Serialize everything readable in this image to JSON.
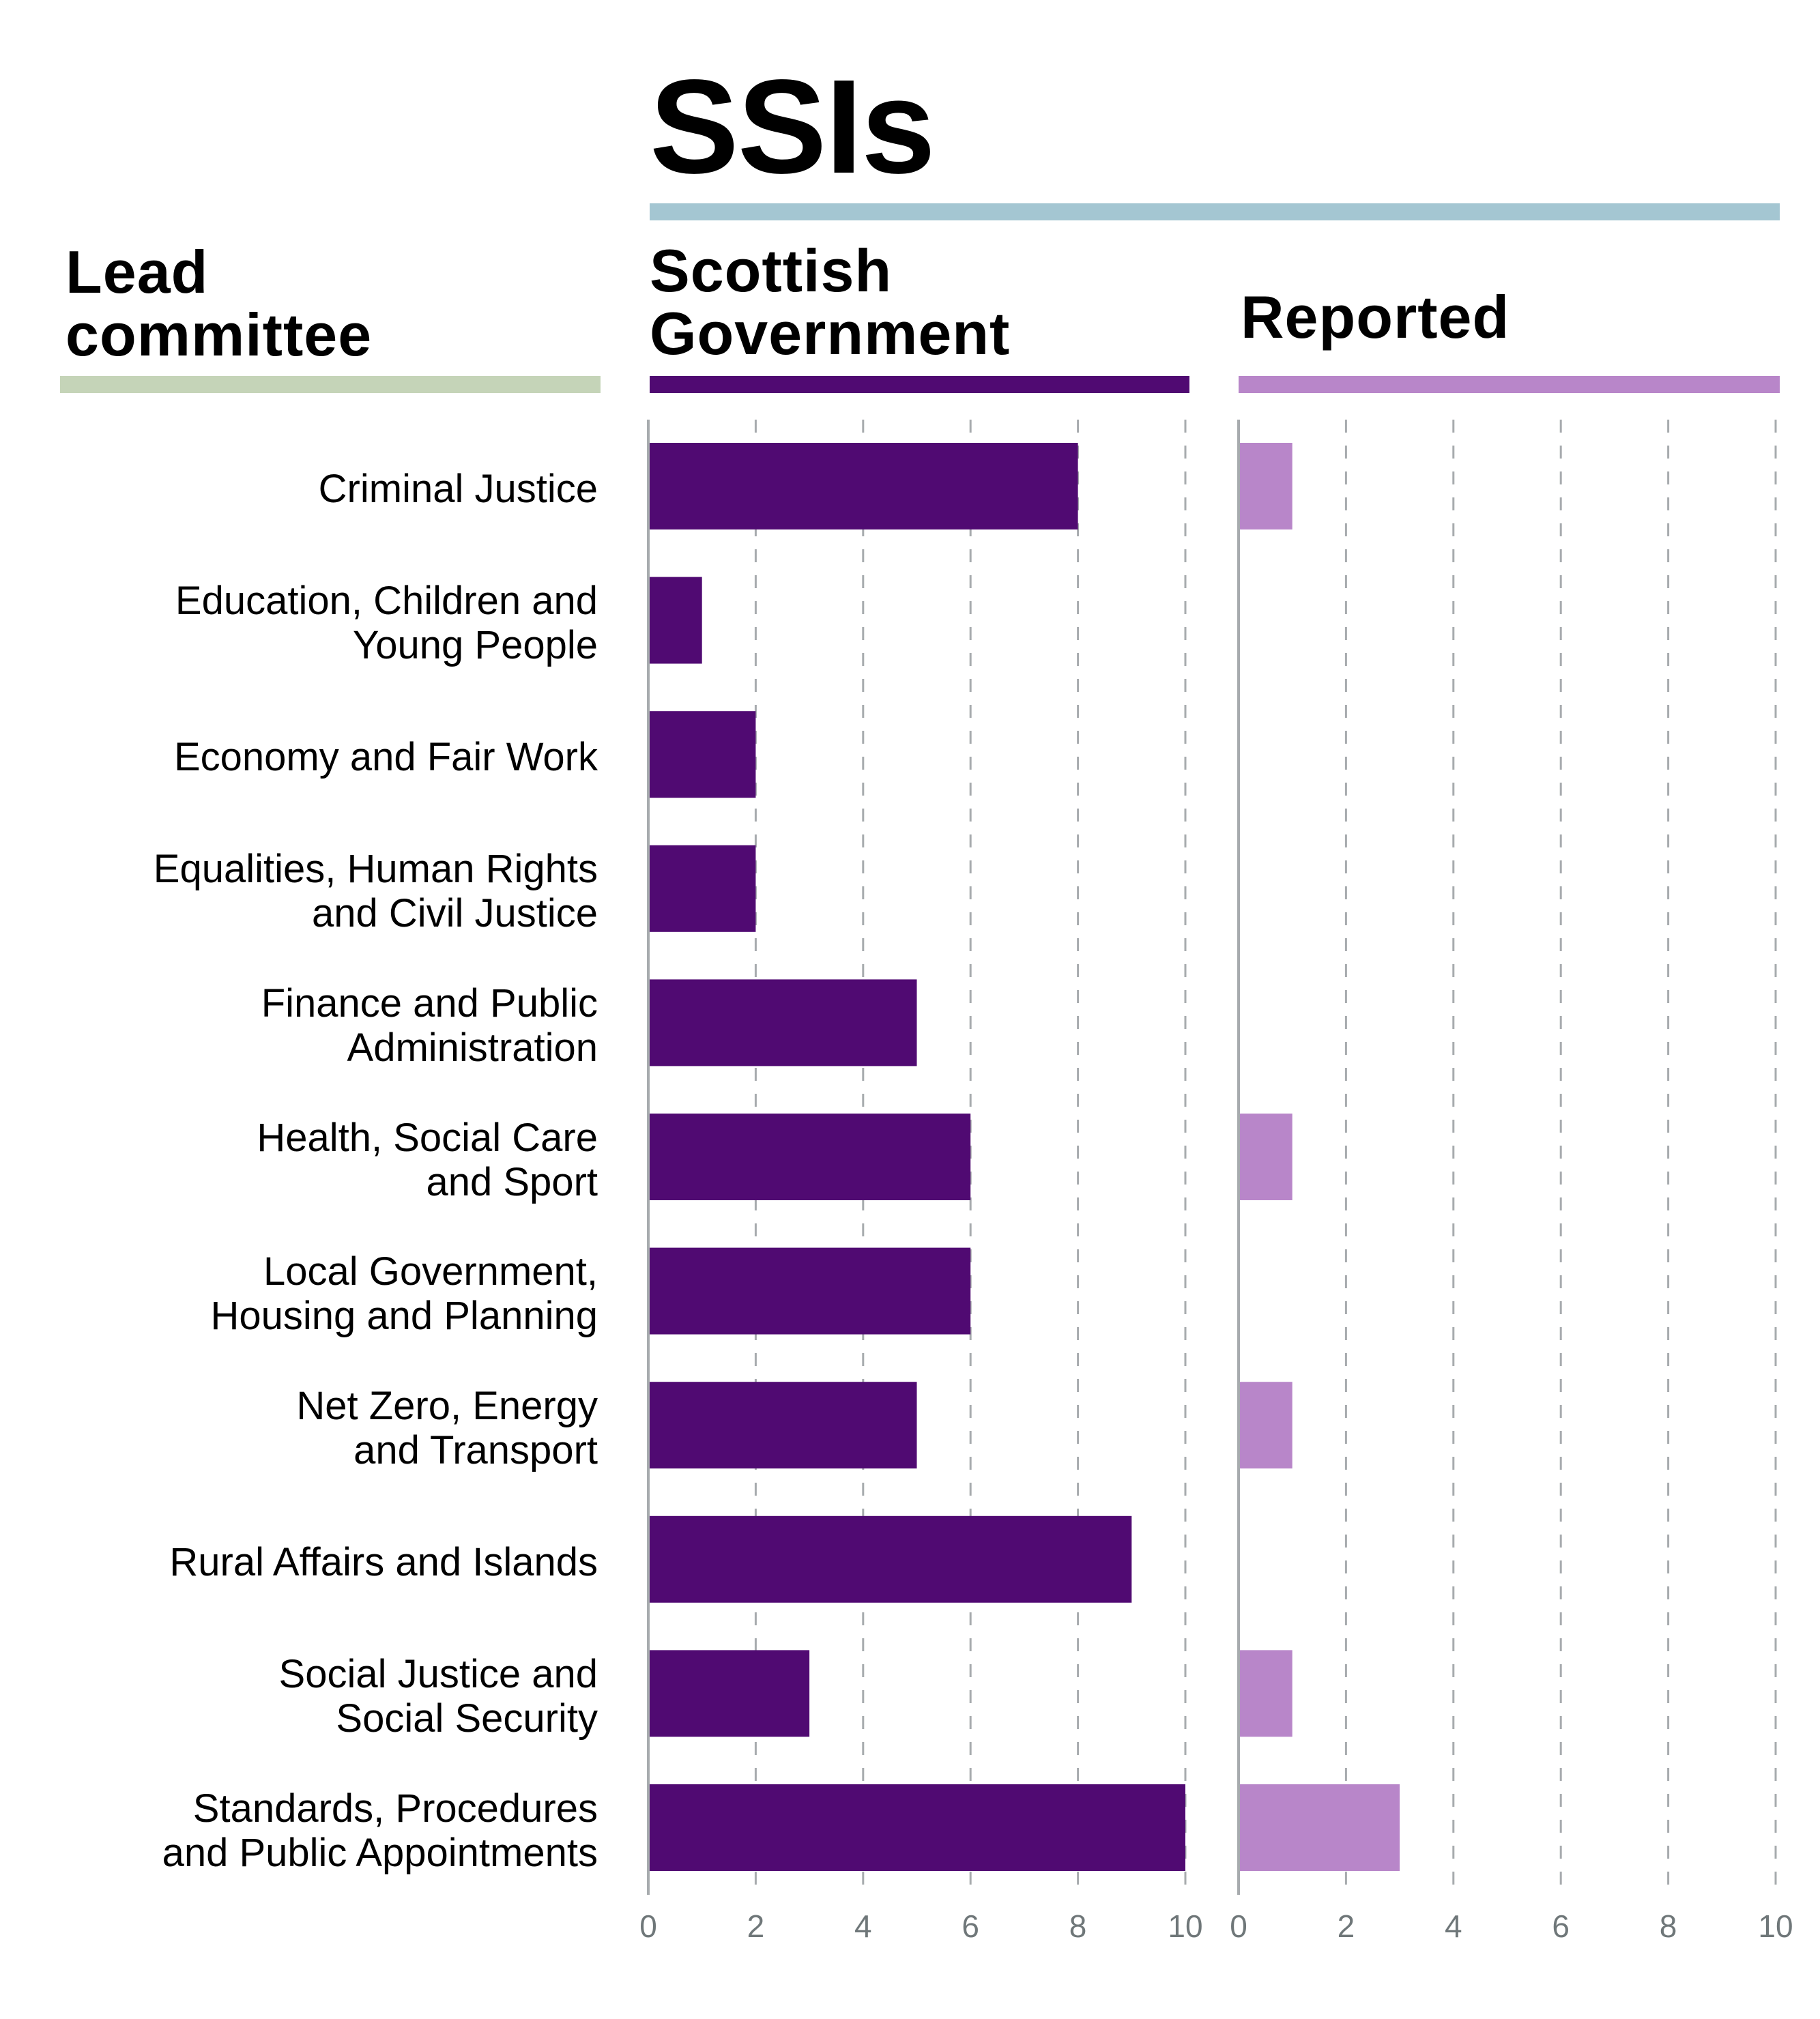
{
  "title": "SSIs",
  "headers": {
    "lead_committee": [
      "Lead",
      "committee"
    ],
    "scottish_government": [
      "Scottish",
      "Government"
    ],
    "reported": [
      "Reported"
    ]
  },
  "colors": {
    "title_rule": "#a4c6d2",
    "lead_rule": "#c5d4b8",
    "scottish_government": "#500a72",
    "reported": "#b886c9",
    "axis": "#a7abae",
    "tick_text": "#6f7779"
  },
  "chart_data": [
    {
      "type": "bar",
      "orientation": "horizontal",
      "title": "Scottish Government",
      "categories": [
        "Criminal Justice",
        "Education, Children and Young People",
        "Economy and Fair Work",
        "Equalities, Human Rights and Civil Justice",
        "Finance and Public Administration",
        "Health, Social Care and Sport",
        "Local Government, Housing and Planning",
        "Net Zero, Energy and Transport",
        "Rural Affairs and Islands",
        "Social Justice and Social Security",
        "Standards, Procedures and Public Appointments"
      ],
      "values": [
        8,
        1,
        2,
        2,
        5,
        6,
        6,
        5,
        9,
        3,
        10
      ],
      "xlim": [
        0,
        10
      ],
      "xticks": [
        "0",
        "2",
        "4",
        "6",
        "8",
        "10"
      ],
      "grid": "vertical dashed",
      "xlabel": "",
      "ylabel": "Lead committee"
    },
    {
      "type": "bar",
      "orientation": "horizontal",
      "title": "Reported",
      "categories": [
        "Criminal Justice",
        "Education, Children and Young People",
        "Economy and Fair Work",
        "Equalities, Human Rights and Civil Justice",
        "Finance and Public Administration",
        "Health, Social Care and Sport",
        "Local Government, Housing and Planning",
        "Net Zero, Energy and Transport",
        "Rural Affairs and Islands",
        "Social Justice and Social Security",
        "Standards, Procedures and Public Appointments"
      ],
      "values": [
        1,
        0,
        0,
        0,
        0,
        1,
        0,
        1,
        0,
        1,
        3
      ],
      "xlim": [
        0,
        10
      ],
      "xticks": [
        "0",
        "2",
        "4",
        "6",
        "8",
        "10"
      ],
      "grid": "vertical dashed",
      "xlabel": "",
      "ylabel": ""
    }
  ],
  "row_labels": [
    [
      "Criminal Justice"
    ],
    [
      "Education, Children and",
      "Young People"
    ],
    [
      "Economy and Fair Work"
    ],
    [
      "Equalities, Human Rights",
      "and Civil Justice"
    ],
    [
      "Finance and Public",
      "Administration"
    ],
    [
      "Health, Social Care",
      "and Sport"
    ],
    [
      "Local Government,",
      "Housing and Planning"
    ],
    [
      "Net Zero, Energy",
      "and Transport"
    ],
    [
      "Rural Affairs and Islands"
    ],
    [
      "Social Justice and",
      "Social Security"
    ],
    [
      "Standards, Procedures",
      "and Public Appointments"
    ]
  ]
}
